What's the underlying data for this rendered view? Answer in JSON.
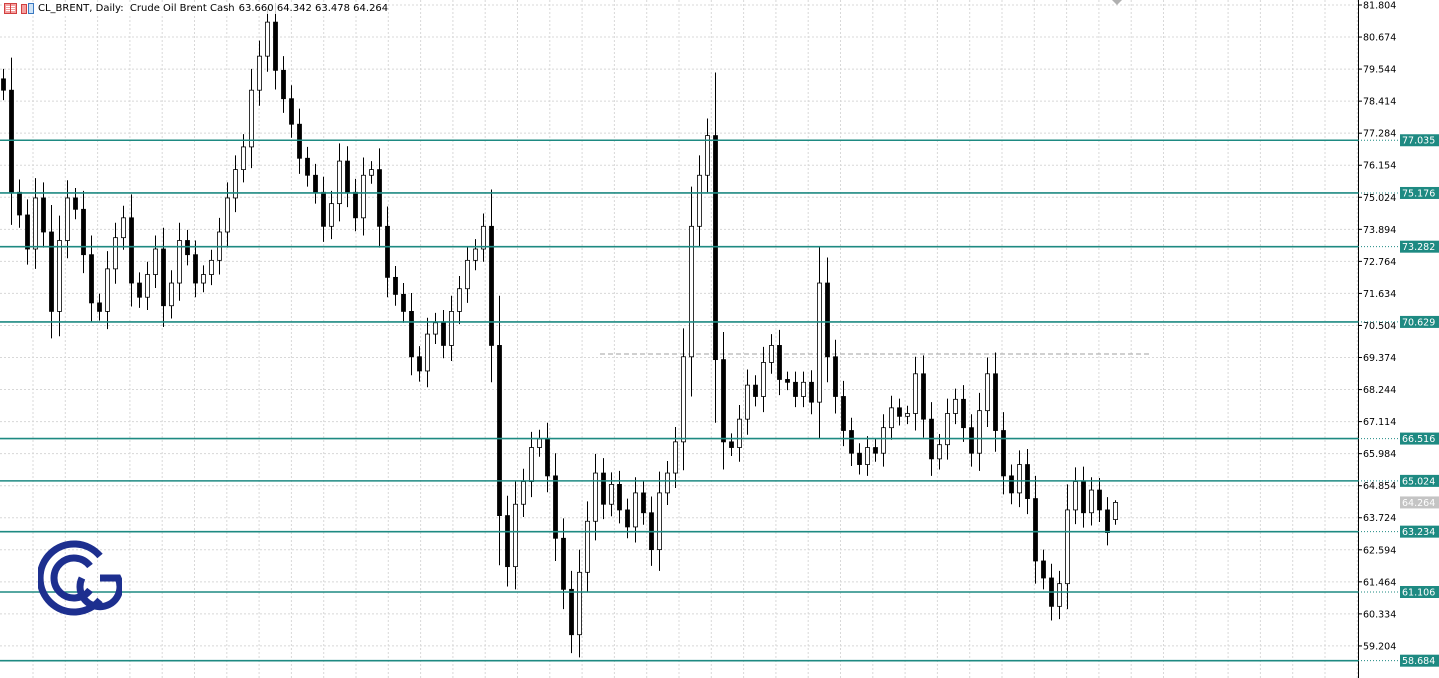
{
  "header": {
    "symbol_line": "CL_BRENT, Daily:  Crude Oil Brent Cash",
    "ohlc_line": "63.660 64.342 63.478 64.264",
    "icons": [
      "indicators-list-icon",
      "chart-properties-icon"
    ]
  },
  "logo": {
    "text": "C&G"
  },
  "colors": {
    "level": "#1e8a82",
    "bull_body": "#ffffff",
    "bear_body": "#000000",
    "grid": "#d8d8d8",
    "price_label": "#c4c4c4",
    "dashed_line": "#a0a0a0"
  },
  "chart_data": {
    "type": "candlestick",
    "title": "CL_BRENT, Daily",
    "ylim": [
      58.6,
      81.95
    ],
    "y_ticks": [
      "81.804",
      "80.674",
      "79.544",
      "78.414",
      "77.284",
      "76.154",
      "75.024",
      "73.894",
      "72.764",
      "71.634",
      "70.504",
      "69.374",
      "68.244",
      "67.114",
      "65.984",
      "64.854",
      "63.724",
      "62.594",
      "61.464",
      "60.334",
      "59.204"
    ],
    "grid": true,
    "closes": [
      78.8,
      75.2,
      74.4,
      73.2,
      75.0,
      73.8,
      71.0,
      73.5,
      75.0,
      74.6,
      73.0,
      71.3,
      71.0,
      72.5,
      73.6,
      74.3,
      72.0,
      71.5,
      72.3,
      73.2,
      71.2,
      72.0,
      73.5,
      73.0,
      72.0,
      72.3,
      72.8,
      73.8,
      75.0,
      76.0,
      76.8,
      78.8,
      80.0,
      81.2,
      79.5,
      78.5,
      77.6,
      76.4,
      75.8,
      75.2,
      74.0,
      74.8,
      76.3,
      75.2,
      74.3,
      75.8,
      76.0,
      74.0,
      72.2,
      71.6,
      71.0,
      69.4,
      68.9,
      70.2,
      70.6,
      69.8,
      71.0,
      71.8,
      72.8,
      73.2,
      74.0,
      69.8,
      63.8,
      62.0,
      64.2,
      65.0,
      66.2,
      66.5,
      65.2,
      63.0,
      61.2,
      59.6,
      61.8,
      63.6,
      65.3,
      64.2,
      64.9,
      64.0,
      63.4,
      64.6,
      63.9,
      62.6,
      64.6,
      65.3,
      66.4,
      69.4,
      74.0,
      75.8,
      77.2,
      69.3,
      66.4,
      66.2,
      67.2,
      68.4,
      68.0,
      69.2,
      69.8,
      68.6,
      68.5,
      68.0,
      68.5,
      67.8,
      72.0,
      69.4,
      68.0,
      66.8,
      66.0,
      65.6,
      66.2,
      66.0,
      66.9,
      67.6,
      67.3,
      67.4,
      68.8,
      67.2,
      65.8,
      66.3,
      67.4,
      67.9,
      66.9,
      66.0,
      67.5,
      68.8,
      66.8,
      65.2,
      64.6,
      65.6,
      64.4,
      62.2,
      61.6,
      60.6,
      61.4,
      64.0,
      65.0,
      63.9,
      64.7,
      64.0,
      63.2,
      64.264
    ],
    "last_candle": {
      "open": 63.66,
      "high": 64.342,
      "low": 63.478,
      "close": 64.264
    },
    "current_price": "64.264",
    "levels": [
      "77.035",
      "75.176",
      "73.282",
      "70.629",
      "66.516",
      "65.024",
      "63.234",
      "61.106",
      "58.684"
    ],
    "dashed_level": 69.5
  }
}
